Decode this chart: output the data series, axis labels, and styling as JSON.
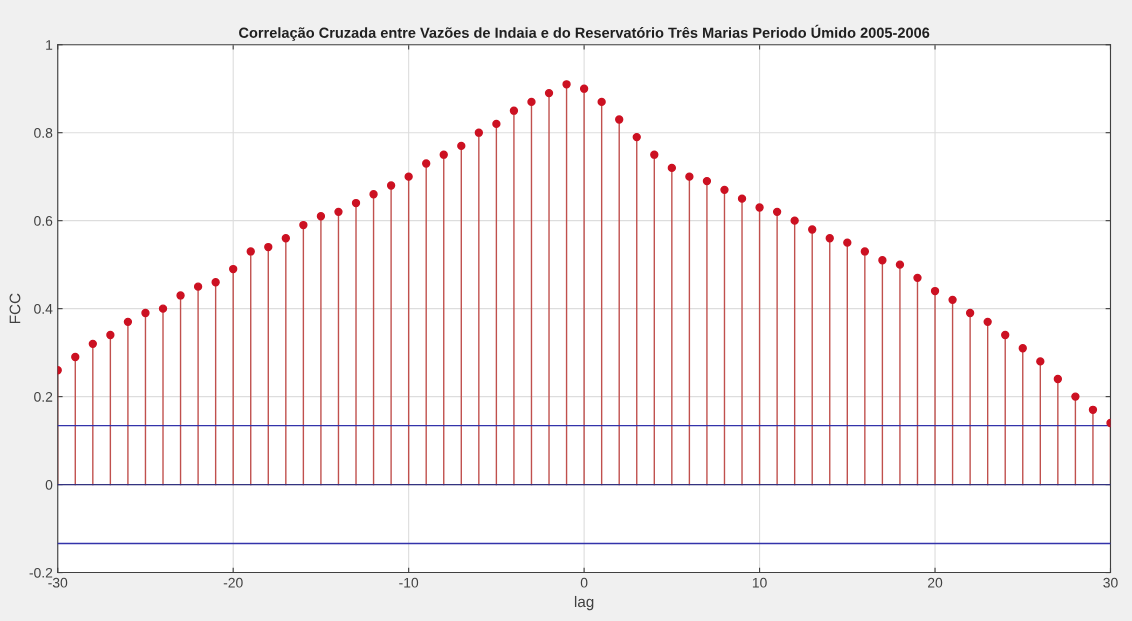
{
  "chart_data": {
    "type": "lollipop",
    "title": "Correlação Cruzada entre Vazões de Indaia e do Reservatório Três Marias Periodo Úmido 2005-2006",
    "xlabel": "lag",
    "ylabel": "FCC",
    "x": [
      -30,
      -29,
      -28,
      -27,
      -26,
      -25,
      -24,
      -23,
      -22,
      -21,
      -20,
      -19,
      -18,
      -17,
      -16,
      -15,
      -14,
      -13,
      -12,
      -11,
      -10,
      -9,
      -8,
      -7,
      -6,
      -5,
      -4,
      -3,
      -2,
      -1,
      0,
      1,
      2,
      3,
      4,
      5,
      6,
      7,
      8,
      9,
      10,
      11,
      12,
      13,
      14,
      15,
      16,
      17,
      18,
      19,
      20,
      21,
      22,
      23,
      24,
      25,
      26,
      27,
      28,
      29,
      30
    ],
    "series": [
      {
        "color": "#cc1122",
        "values": [
          0.26,
          0.29,
          0.32,
          0.34,
          0.37,
          0.39,
          0.4,
          0.43,
          0.45,
          0.46,
          0.49,
          0.53,
          0.54,
          0.56,
          0.59,
          0.61,
          0.62,
          0.64,
          0.66,
          0.68,
          0.7,
          0.73,
          0.75,
          0.77,
          0.8,
          0.82,
          0.85,
          0.87,
          0.89,
          0.91,
          0.9,
          0.87,
          0.83,
          0.79,
          0.75,
          0.72,
          0.7,
          0.69,
          0.67,
          0.65,
          0.63,
          0.62,
          0.6,
          0.58,
          0.56,
          0.55,
          0.53,
          0.51,
          0.5,
          0.47,
          0.44,
          0.42,
          0.39,
          0.37,
          0.34,
          0.31,
          0.28,
          0.24,
          0.2,
          0.17,
          0.14
        ]
      }
    ],
    "xlim": [
      -30,
      30
    ],
    "xticks": [
      -30,
      -20,
      -10,
      0,
      10,
      20,
      30
    ],
    "ylim": [
      -0.2,
      1
    ],
    "yticks": [
      -0.2,
      0,
      0.2,
      0.4,
      0.6,
      0.8,
      1
    ],
    "ref_lines": [
      {
        "axis": "y",
        "value": 0,
        "color": "#333380"
      },
      {
        "axis": "y",
        "value": 0.134,
        "color": "#3333aa"
      },
      {
        "axis": "y",
        "value": -0.134,
        "color": "#3333aa"
      }
    ],
    "grid": true,
    "marker": "circle"
  }
}
